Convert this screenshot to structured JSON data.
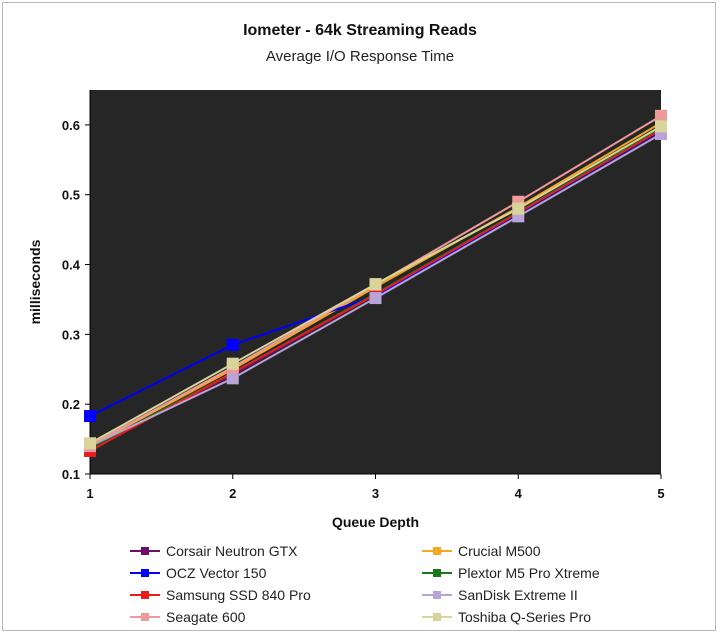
{
  "chart_data": {
    "type": "line",
    "title": "Iometer - 64k Streaming Reads",
    "subtitle": "Average I/O Response Time",
    "xlabel": "Queue Depth",
    "ylabel": "milliseconds",
    "x": [
      1,
      2,
      3,
      4,
      5
    ],
    "xlim": [
      1,
      5
    ],
    "ylim": [
      0.1,
      0.65
    ],
    "yticks": [
      0.1,
      0.2,
      0.3,
      0.4,
      0.5,
      0.6
    ],
    "ytick_labels": [
      "0.1",
      "0.2",
      "0.3",
      "0.4",
      "0.5",
      "0.6"
    ],
    "xtick_labels": [
      "1",
      "2",
      "3",
      "4",
      "5"
    ],
    "plot_background": "#262626",
    "grid": false,
    "legend_position": "bottom",
    "series": [
      {
        "name": "Corsair Neutron GTX",
        "color": "#6b0f6b",
        "values": [
          0.138,
          0.242,
          0.357,
          0.475,
          0.591
        ]
      },
      {
        "name": "Crucial M500",
        "color": "#f5a623",
        "values": [
          0.14,
          0.25,
          0.368,
          0.482,
          0.603
        ]
      },
      {
        "name": "OCZ Vector 150",
        "color": "#0000ff",
        "values": [
          0.183,
          0.285,
          0.355,
          0.473,
          0.592
        ]
      },
      {
        "name": "Plextor M5 Pro Xtreme",
        "color": "#1a7a1a",
        "values": [
          0.137,
          0.245,
          0.358,
          0.475,
          0.595
        ]
      },
      {
        "name": "Samsung SSD 840 Pro",
        "color": "#e81c1c",
        "values": [
          0.133,
          0.245,
          0.357,
          0.474,
          0.593
        ]
      },
      {
        "name": "SanDisk Extreme II",
        "color": "#b8a4d6",
        "values": [
          0.14,
          0.237,
          0.352,
          0.469,
          0.587
        ]
      },
      {
        "name": "Seagate 600",
        "color": "#ee9a9a",
        "values": [
          0.141,
          0.253,
          0.371,
          0.49,
          0.613
        ]
      },
      {
        "name": "Toshiba Q-Series Pro",
        "color": "#d8d49a",
        "values": [
          0.144,
          0.258,
          0.372,
          0.48,
          0.598
        ]
      }
    ]
  }
}
